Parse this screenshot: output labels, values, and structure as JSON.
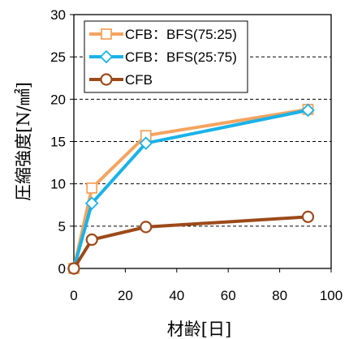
{
  "chart_data": {
    "type": "line",
    "xlabel": "材齢[日]",
    "ylabel": "圧縮強度[N/㎟]",
    "xlim": [
      0,
      100
    ],
    "ylim": [
      0,
      30
    ],
    "xticks": [
      "0",
      "20",
      "40",
      "60",
      "80",
      "100"
    ],
    "yticks": [
      "0",
      "5",
      "10",
      "15",
      "20",
      "25",
      "30"
    ],
    "grid": "horizontal-dashed",
    "legend_position": "top-left",
    "series": [
      {
        "name": "CFB：BFS(75:25)",
        "color": "#f4a460",
        "marker": "square",
        "x": [
          0,
          7,
          28,
          91
        ],
        "y": [
          0,
          9.5,
          15.7,
          18.8
        ]
      },
      {
        "name": "CFB：BFS(25:75)",
        "color": "#1ab2e8",
        "marker": "diamond",
        "x": [
          0,
          7,
          28,
          91
        ],
        "y": [
          0,
          7.7,
          14.8,
          18.7
        ]
      },
      {
        "name": "CFB",
        "color": "#9c4a1a",
        "marker": "circle",
        "x": [
          0,
          7,
          28,
          91
        ],
        "y": [
          0,
          3.4,
          4.9,
          6.1
        ]
      }
    ]
  }
}
